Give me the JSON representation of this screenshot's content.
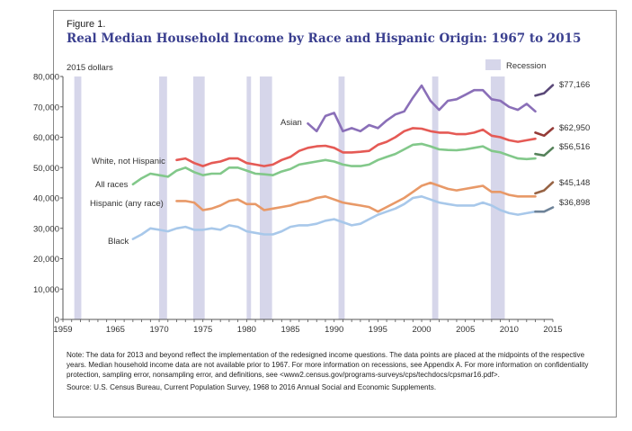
{
  "figure": {
    "label": "Figure 1.",
    "title": "Real Median Household Income by Race and Hispanic Origin: 1967 to 2015",
    "unit_label": "2015 dollars",
    "recession_legend": "Recession",
    "note": "Note: The data for 2013 and beyond reflect the implementation of the redesigned income questions. The data points are placed at the midpoints of the respective years. Median household income data are not available prior to 1967. For more information on recessions, see Appendix A. For more information on confidentiality protection, sampling error, nonsampling error, and definitions, see <www2.census.gov/programs-surveys/cps/techdocs/cpsmar16.pdf>.",
    "source": "Source: U.S. Census Bureau, Current Population Survey, 1968 to 2016 Annual Social and Economic Supplements."
  },
  "colors": {
    "recession": "#d6d6ea",
    "axis": "#555555",
    "title": "#3a3f8f"
  },
  "chart_data": {
    "type": "line",
    "title": "Real Median Household Income by Race and Hispanic Origin: 1967 to 2015",
    "ylabel": "2015 dollars",
    "xlabel": "",
    "xlim": [
      1959,
      2015
    ],
    "ylim": [
      0,
      80000
    ],
    "xticks": [
      1959,
      1965,
      1970,
      1975,
      1980,
      1985,
      1990,
      1995,
      2000,
      2005,
      2010,
      2015
    ],
    "yticks": [
      0,
      10000,
      20000,
      30000,
      40000,
      50000,
      60000,
      70000,
      80000
    ],
    "ytick_labels": [
      "0",
      "10,000",
      "20,000",
      "30,000",
      "40,000",
      "50,000",
      "60,000",
      "70,000",
      "80,000"
    ],
    "grid": false,
    "recessions": [
      [
        1960.3,
        1961.1
      ],
      [
        1970.0,
        1970.9
      ],
      [
        1973.9,
        1975.2
      ],
      [
        1980.0,
        1980.5
      ],
      [
        1981.5,
        1982.9
      ],
      [
        1990.5,
        1991.2
      ],
      [
        2001.2,
        2001.9
      ],
      [
        2007.9,
        2009.5
      ]
    ],
    "series": [
      {
        "name": "Asian",
        "color": "#8a6fb8",
        "label_text": "Asian",
        "end_label": "$77,166",
        "x": [
          1987,
          1988,
          1989,
          1990,
          1991,
          1992,
          1993,
          1994,
          1995,
          1996,
          1997,
          1998,
          1999,
          2000,
          2001,
          2002,
          2003,
          2004,
          2005,
          2006,
          2007,
          2008,
          2009,
          2010,
          2011,
          2012,
          2013
        ],
        "y": [
          64500,
          62000,
          67000,
          68000,
          62000,
          63000,
          62000,
          64000,
          63000,
          65500,
          67500,
          68500,
          73000,
          77000,
          72000,
          69000,
          72000,
          72500,
          74000,
          75500,
          75500,
          72500,
          72000,
          70000,
          69000,
          71000,
          68500
        ],
        "x2": [
          2013,
          2014,
          2015
        ],
        "y2": [
          73700,
          74500,
          77166
        ]
      },
      {
        "name": "White, not Hispanic",
        "color": "#e55a55",
        "label_text": "White, not Hispanic",
        "end_label": "$62,950",
        "x": [
          1972,
          1973,
          1974,
          1975,
          1976,
          1977,
          1978,
          1979,
          1980,
          1981,
          1982,
          1983,
          1984,
          1985,
          1986,
          1987,
          1988,
          1989,
          1990,
          1991,
          1992,
          1993,
          1994,
          1995,
          1996,
          1997,
          1998,
          1999,
          2000,
          2001,
          2002,
          2003,
          2004,
          2005,
          2006,
          2007,
          2008,
          2009,
          2010,
          2011,
          2012,
          2013
        ],
        "y": [
          52500,
          53000,
          51500,
          50500,
          51500,
          52000,
          53000,
          53000,
          51500,
          51000,
          50500,
          51000,
          52500,
          53500,
          55500,
          56500,
          57000,
          57200,
          56500,
          55000,
          55000,
          55200,
          55500,
          57500,
          58500,
          60000,
          62000,
          63000,
          62800,
          62000,
          61500,
          61500,
          61000,
          61000,
          61500,
          62500,
          60500,
          60000,
          59000,
          58500,
          59000,
          59500
        ],
        "x2": [
          2013,
          2014,
          2015
        ],
        "y2": [
          61500,
          60500,
          62950
        ]
      },
      {
        "name": "All races",
        "color": "#82c88a",
        "label_text": "All races",
        "end_label": "$56,516",
        "x": [
          1967,
          1968,
          1969,
          1970,
          1971,
          1972,
          1973,
          1974,
          1975,
          1976,
          1977,
          1978,
          1979,
          1980,
          1981,
          1982,
          1983,
          1984,
          1985,
          1986,
          1987,
          1988,
          1989,
          1990,
          1991,
          1992,
          1993,
          1994,
          1995,
          1996,
          1997,
          1998,
          1999,
          2000,
          2001,
          2002,
          2003,
          2004,
          2005,
          2006,
          2007,
          2008,
          2009,
          2010,
          2011,
          2012,
          2013
        ],
        "y": [
          44500,
          46500,
          48000,
          47500,
          47000,
          49000,
          50000,
          48500,
          47500,
          48000,
          48000,
          50000,
          50000,
          49000,
          48000,
          47800,
          47500,
          48700,
          49500,
          51000,
          51500,
          52000,
          52500,
          52000,
          51000,
          50500,
          50500,
          51000,
          52500,
          53500,
          54500,
          56000,
          57500,
          57800,
          57000,
          56000,
          55800,
          55700,
          56000,
          56500,
          57000,
          55500,
          55000,
          54000,
          53000,
          52800,
          53000
        ],
        "x2": [
          2013,
          2014,
          2015
        ],
        "y2": [
          54500,
          54000,
          56516
        ]
      },
      {
        "name": "Hispanic (any race)",
        "color": "#e89968",
        "label_text": "Hispanic (any race)",
        "end_label": "$45,148",
        "x": [
          1972,
          1973,
          1974,
          1975,
          1976,
          1977,
          1978,
          1979,
          1980,
          1981,
          1982,
          1983,
          1984,
          1985,
          1986,
          1987,
          1988,
          1989,
          1990,
          1991,
          1992,
          1993,
          1994,
          1995,
          1996,
          1997,
          1998,
          1999,
          2000,
          2001,
          2002,
          2003,
          2004,
          2005,
          2006,
          2007,
          2008,
          2009,
          2010,
          2011,
          2012,
          2013
        ],
        "y": [
          39000,
          39000,
          38500,
          36000,
          36500,
          37500,
          39000,
          39500,
          38000,
          38000,
          36000,
          36500,
          37000,
          37500,
          38500,
          39000,
          40000,
          40500,
          39500,
          38500,
          38000,
          37500,
          37000,
          35500,
          37000,
          38500,
          40000,
          42000,
          44000,
          45000,
          44000,
          43000,
          42500,
          43000,
          43500,
          44000,
          42000,
          42000,
          41000,
          40500,
          40500,
          40500
        ],
        "x2": [
          2013,
          2014,
          2015
        ],
        "y2": [
          41500,
          42500,
          45148
        ]
      },
      {
        "name": "Black",
        "color": "#a8c8ea",
        "label_text": "Black",
        "end_label": "$36,898",
        "x": [
          1967,
          1968,
          1969,
          1970,
          1971,
          1972,
          1973,
          1974,
          1975,
          1976,
          1977,
          1978,
          1979,
          1980,
          1981,
          1982,
          1983,
          1984,
          1985,
          1986,
          1987,
          1988,
          1989,
          1990,
          1991,
          1992,
          1993,
          1994,
          1995,
          1996,
          1997,
          1998,
          1999,
          2000,
          2001,
          2002,
          2003,
          2004,
          2005,
          2006,
          2007,
          2008,
          2009,
          2010,
          2011,
          2012,
          2013
        ],
        "y": [
          26500,
          28000,
          30000,
          29500,
          29000,
          30000,
          30500,
          29500,
          29500,
          30000,
          29500,
          31000,
          30500,
          29000,
          28500,
          28000,
          28000,
          29000,
          30500,
          31000,
          31000,
          31500,
          32500,
          33000,
          32000,
          31000,
          31500,
          33000,
          34500,
          35500,
          36500,
          38000,
          40000,
          40500,
          39500,
          38500,
          38000,
          37500,
          37500,
          37500,
          38500,
          37500,
          36000,
          35000,
          34500,
          35000,
          35500
        ],
        "x2": [
          2013,
          2014,
          2015
        ],
        "y2": [
          35500,
          35500,
          36898
        ]
      }
    ]
  }
}
